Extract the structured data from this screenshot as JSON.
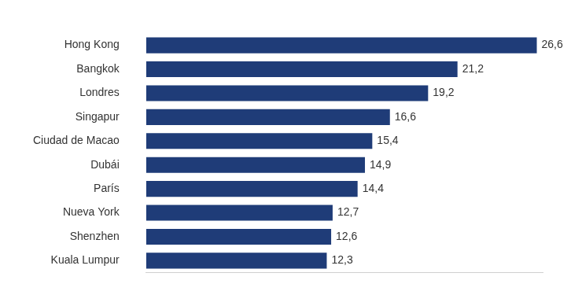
{
  "chart_data": {
    "type": "bar",
    "orientation": "horizontal",
    "categories": [
      "Hong Kong",
      "Bangkok",
      "Londres",
      "Singapur",
      "Ciudad de Macao",
      "Dubái",
      "París",
      "Nueva York",
      "Shenzhen",
      "Kuala Lumpur"
    ],
    "values": [
      26.6,
      21.2,
      19.2,
      16.6,
      15.4,
      14.9,
      14.4,
      12.7,
      12.6,
      12.3
    ],
    "value_labels": [
      "26,6",
      "21,2",
      "19,2",
      "16,6",
      "15,4",
      "14,9",
      "14,4",
      "12,7",
      "12,6",
      "12,3"
    ],
    "color": "#1f3c78",
    "xlim": [
      0,
      27
    ],
    "grid": false,
    "data_labels": true,
    "tick_labels": "y"
  }
}
